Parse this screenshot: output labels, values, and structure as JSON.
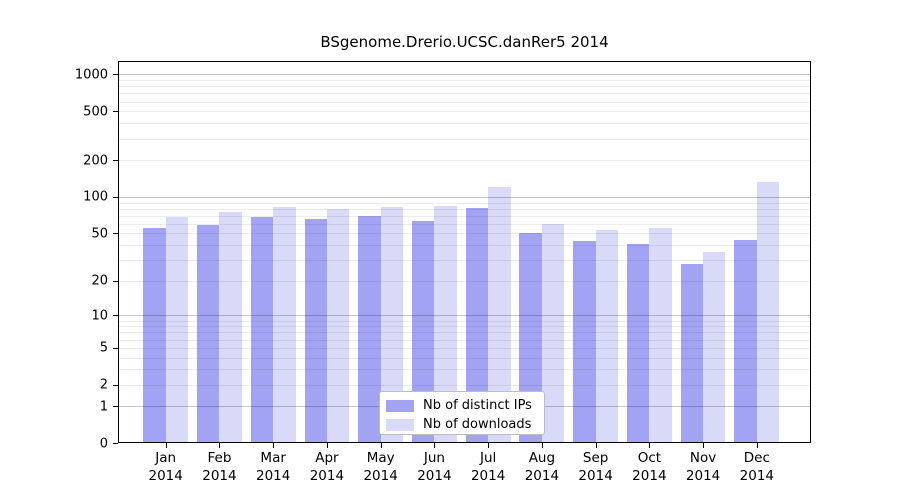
{
  "title": "BSgenome.Drerio.UCSC.danRer5 2014",
  "colors": {
    "ips_bar": "#a3a3f3",
    "downloads_bar": "#d9d9f8",
    "major_grid": "#c6c6c6",
    "minor_grid": "#ededed",
    "axis": "#000000",
    "background": "#ffffff"
  },
  "legend": {
    "items": [
      {
        "label": "Nb of distinct IPs",
        "color_key": "ips_bar"
      },
      {
        "label": "Nb of downloads",
        "color_key": "downloads_bar"
      }
    ]
  },
  "chart_data": {
    "type": "bar",
    "title": "BSgenome.Drerio.UCSC.danRer5 2014",
    "y_scale": "log1p",
    "year": "2014",
    "categories": [
      "Jan",
      "Feb",
      "Mar",
      "Apr",
      "May",
      "Jun",
      "Jul",
      "Aug",
      "Sep",
      "Oct",
      "Nov",
      "Dec"
    ],
    "series": [
      {
        "name": "Nb of distinct IPs",
        "color": "#a3a3f3",
        "values": [
          55,
          59,
          69,
          66,
          70,
          64,
          81,
          50,
          43,
          41,
          28,
          44
        ]
      },
      {
        "name": "Nb of downloads",
        "color": "#d9d9f8",
        "values": [
          68,
          75,
          82,
          80,
          82,
          85,
          120,
          60,
          53,
          56,
          35,
          133
        ]
      }
    ],
    "y_ticks": [
      1000,
      500,
      200,
      100,
      50,
      20,
      10,
      5,
      2,
      1,
      0
    ],
    "ylim": [
      0,
      1400
    ],
    "grid": true,
    "legend_position": "inside-bottom-center"
  }
}
